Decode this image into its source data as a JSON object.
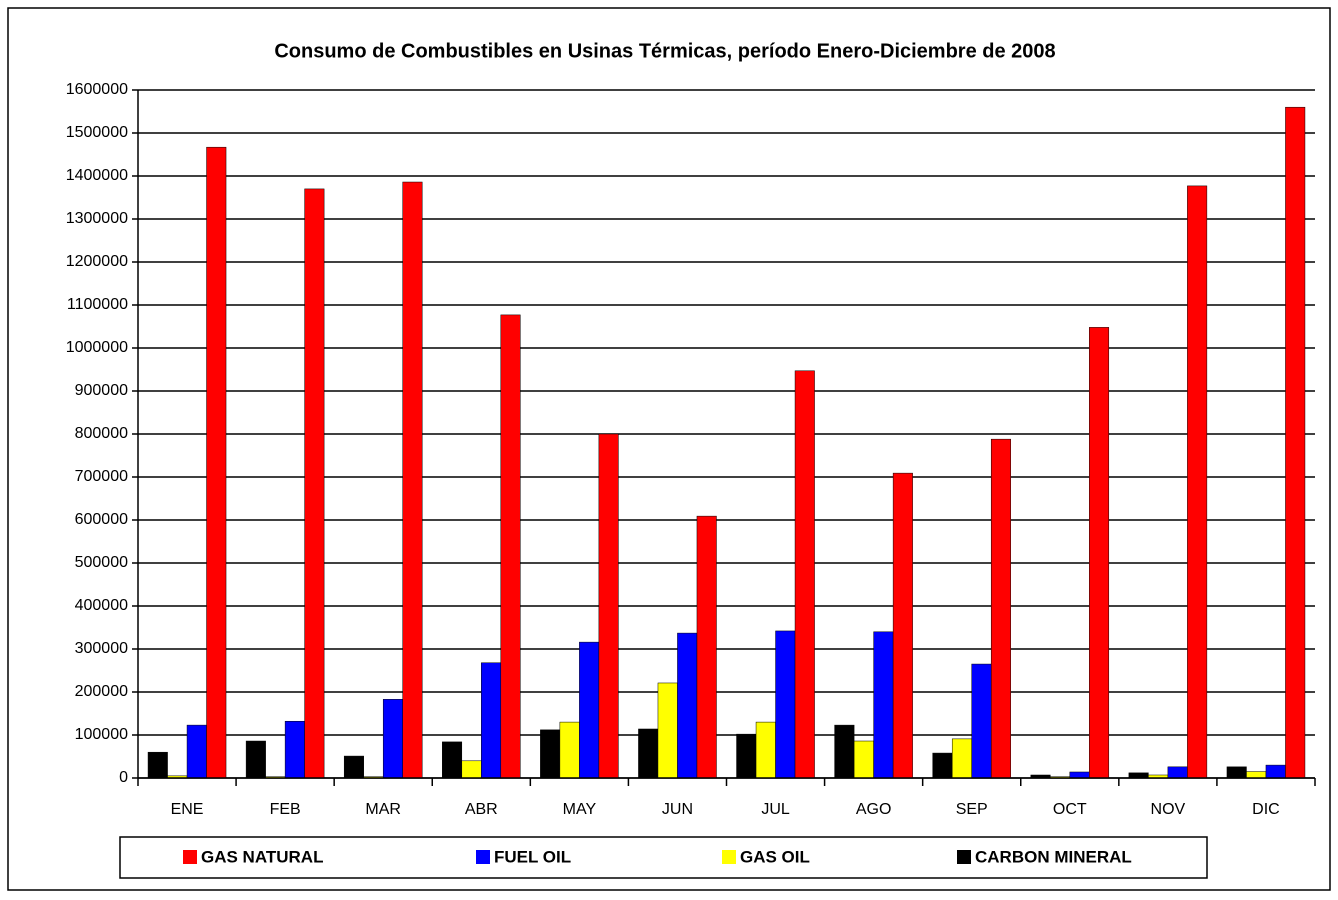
{
  "chart_data": {
    "type": "bar",
    "title": "Consumo de Combustibles en Usinas Térmicas, período Enero-Diciembre de 2008",
    "categories": [
      "ENE",
      "FEB",
      "MAR",
      "ABR",
      "MAY",
      "JUN",
      "JUL",
      "AGO",
      "SEP",
      "OCT",
      "NOV",
      "DIC"
    ],
    "series": [
      {
        "name": "GAS NATURAL",
        "color": "#ff0000",
        "values": [
          1467000,
          1370000,
          1386000,
          1077000,
          800000,
          609000,
          947000,
          709000,
          788000,
          1048000,
          1377000,
          1560000
        ]
      },
      {
        "name": "FUEL OIL",
        "color": "#0000ff",
        "values": [
          123000,
          132000,
          183000,
          268000,
          316000,
          337000,
          342000,
          340000,
          265000,
          14000,
          26000,
          30000
        ]
      },
      {
        "name": "GAS OIL",
        "color": "#ffff00",
        "values": [
          5000,
          3000,
          3000,
          40000,
          130000,
          221000,
          130000,
          86000,
          91000,
          3000,
          7000,
          15000
        ]
      },
      {
        "name": "CARBON MINERAL",
        "color": "#000000",
        "values": [
          60000,
          86000,
          51000,
          84000,
          112000,
          114000,
          102000,
          123000,
          58000,
          7000,
          12000,
          26000
        ]
      }
    ],
    "ylim": [
      0,
      1600000
    ],
    "yticks": [
      0,
      100000,
      200000,
      300000,
      400000,
      500000,
      600000,
      700000,
      800000,
      900000,
      1000000,
      1100000,
      1200000,
      1300000,
      1400000,
      1500000,
      1600000
    ],
    "grid": true,
    "legend": "bottom"
  }
}
